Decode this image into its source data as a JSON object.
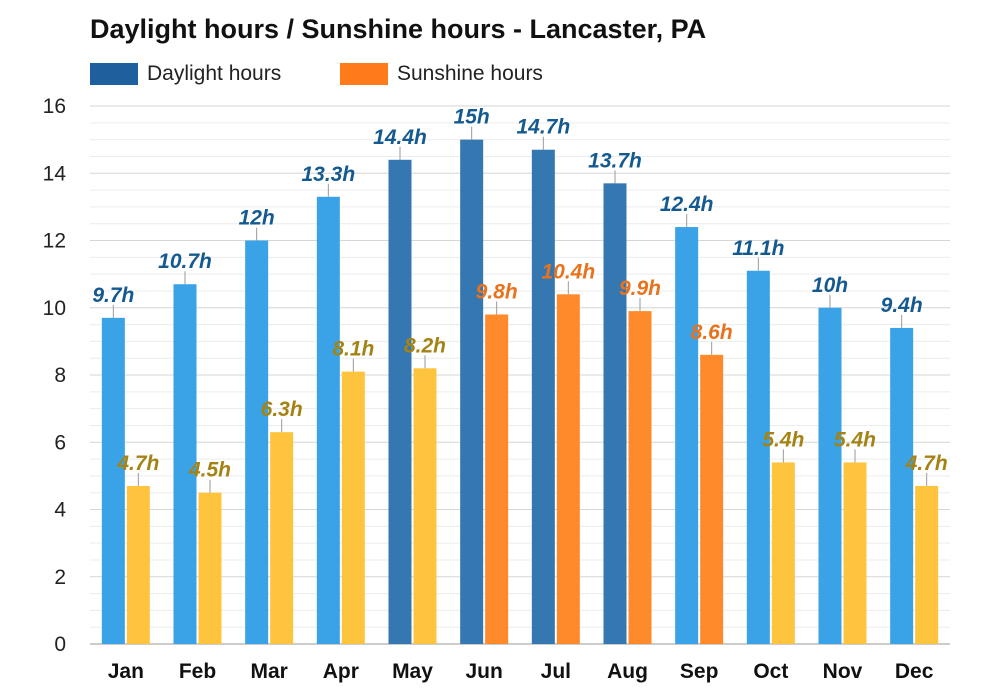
{
  "colors": {
    "daylight": "#3aa2e6",
    "daylight_long": "#3577b0",
    "daylight_label": "#14598f",
    "sunshine": "#ffc43e",
    "sunshine_long": "#ff8a2c",
    "sunshine_label": "#a48314",
    "sunshine_label_long": "#e9721d",
    "legend_daylight": "#1f5f9e",
    "legend_sunshine": "#ff7a1a"
  },
  "chart_data": {
    "type": "bar",
    "title": "Daylight hours / Sunshine hours - Lancaster, PA",
    "categories": [
      "Jan",
      "Feb",
      "Mar",
      "Apr",
      "May",
      "Jun",
      "Jul",
      "Aug",
      "Sep",
      "Oct",
      "Nov",
      "Dec"
    ],
    "series": [
      {
        "name": "Daylight hours",
        "values": [
          9.7,
          10.7,
          12,
          13.3,
          14.4,
          15,
          14.7,
          13.7,
          12.4,
          11.1,
          10,
          9.4
        ],
        "labels": [
          "9.7h",
          "10.7h",
          "12h",
          "13.3h",
          "14.4h",
          "15h",
          "14.7h",
          "13.7h",
          "12.4h",
          "11.1h",
          "10h",
          "9.4h"
        ]
      },
      {
        "name": "Sunshine hours",
        "values": [
          4.7,
          4.5,
          6.3,
          8.1,
          8.2,
          9.8,
          10.4,
          9.9,
          8.6,
          5.4,
          5.4,
          4.7
        ],
        "labels": [
          "4.7h",
          "4.5h",
          "6.3h",
          "8.1h",
          "8.2h",
          "9.8h",
          "10.4h",
          "9.9h",
          "8.6h",
          "5.4h",
          "5.4h",
          "4.7h"
        ]
      }
    ],
    "ylim": [
      0,
      16
    ],
    "yticks": [
      "0",
      "2",
      "4",
      "6",
      "8",
      "10",
      "12",
      "14",
      "16"
    ],
    "grid": true,
    "legend": "top-left"
  }
}
